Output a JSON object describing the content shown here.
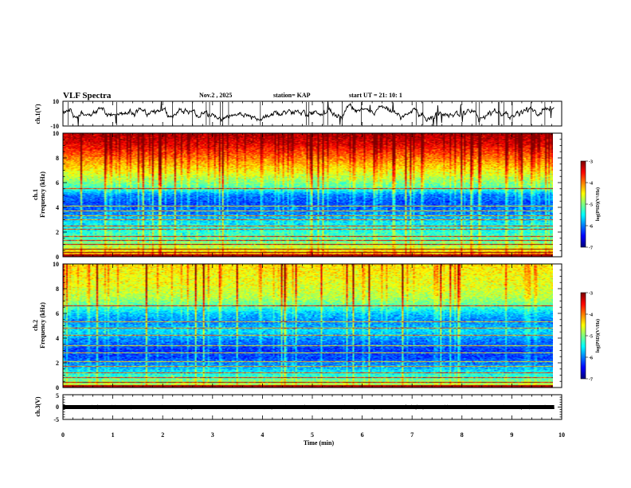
{
  "header": {
    "title": "VLF Spectra",
    "date": "Nov.2 , 2025",
    "station": "station= KAP",
    "start": "start UT = 21: 10: 1"
  },
  "chart_data": [
    {
      "type": "line",
      "name": "ch1-waveform",
      "ylabel": "ch.1(V)",
      "ylim": [
        -10,
        10
      ],
      "yticks": [
        "10",
        "-10"
      ],
      "xlim": [
        0,
        10
      ],
      "color": "#000000"
    },
    {
      "type": "heatmap",
      "name": "ch1-spectrogram",
      "ylabel_line1": "ch.1",
      "ylabel_line2": "Frequency (kHz)",
      "ylim": [
        0,
        10
      ],
      "yticks": [
        "0",
        "2",
        "4",
        "6",
        "8",
        "10"
      ],
      "xlim": [
        0,
        9.85
      ],
      "colorbar": {
        "label": "log(PSD)(V²/Hz)",
        "ticks": [
          "-3",
          "-4",
          "-5",
          "-6",
          "-7"
        ],
        "range": [
          -7,
          -3
        ]
      },
      "profile": [
        {
          "f": 0,
          "v": -4.0
        },
        {
          "f": 0.3,
          "v": -4.3
        },
        {
          "f": 0.7,
          "v": -4.7
        },
        {
          "f": 1.2,
          "v": -5.1
        },
        {
          "f": 2.0,
          "v": -5.4
        },
        {
          "f": 2.8,
          "v": -5.6
        },
        {
          "f": 3.5,
          "v": -6.0
        },
        {
          "f": 4.3,
          "v": -6.2
        },
        {
          "f": 5.0,
          "v": -6.0
        },
        {
          "f": 5.5,
          "v": -5.3
        },
        {
          "f": 6.2,
          "v": -4.9
        },
        {
          "f": 7.2,
          "v": -4.4
        },
        {
          "f": 8.2,
          "v": -3.9
        },
        {
          "f": 9.2,
          "v": -3.4
        },
        {
          "f": 10.0,
          "v": -3.2
        }
      ],
      "lines_khz": [
        0.3,
        0.6,
        1.0,
        1.3,
        1.6,
        2.2,
        2.5,
        3.0,
        3.3,
        3.7,
        4.1,
        5.5
      ]
    },
    {
      "type": "heatmap",
      "name": "ch2-spectrogram",
      "ylabel_line1": "ch.2",
      "ylabel_line2": "Frequency (kHz)",
      "ylim": [
        0,
        10
      ],
      "yticks": [
        "0",
        "2",
        "4",
        "6",
        "8",
        "10"
      ],
      "xlim": [
        0,
        9.85
      ],
      "colorbar": {
        "label": "log(PSD)(V²/Hz)",
        "ticks": [
          "-3",
          "-4",
          "-5",
          "-6",
          "-7"
        ],
        "range": [
          -7,
          -3
        ]
      },
      "profile": [
        {
          "f": 0,
          "v": -4.6
        },
        {
          "f": 0.5,
          "v": -5.0
        },
        {
          "f": 1.0,
          "v": -5.4
        },
        {
          "f": 1.6,
          "v": -5.8
        },
        {
          "f": 2.3,
          "v": -6.2
        },
        {
          "f": 3.0,
          "v": -6.3
        },
        {
          "f": 3.8,
          "v": -6.0
        },
        {
          "f": 4.6,
          "v": -5.6
        },
        {
          "f": 5.3,
          "v": -6.0
        },
        {
          "f": 6.0,
          "v": -5.7
        },
        {
          "f": 6.6,
          "v": -5.2
        },
        {
          "f": 7.3,
          "v": -4.8
        },
        {
          "f": 8.3,
          "v": -4.6
        },
        {
          "f": 9.2,
          "v": -4.5
        },
        {
          "f": 10.0,
          "v": -4.4
        }
      ],
      "lines_khz": [
        0.4,
        0.8,
        1.2,
        1.7,
        2.1,
        2.8,
        3.4,
        4.2,
        4.8,
        5.3,
        6.6
      ]
    },
    {
      "type": "line",
      "name": "ch3-waveform",
      "ylabel": "ch.3(V)",
      "ylim": [
        -5,
        5
      ],
      "yticks": [
        "5",
        "0",
        "-5"
      ],
      "xlim": [
        0,
        10
      ],
      "level": 0,
      "color": "#000000"
    }
  ],
  "xaxis": {
    "label": "Time (min)",
    "ticks": [
      "0",
      "1",
      "2",
      "3",
      "4",
      "5",
      "6",
      "7",
      "8",
      "9",
      "10"
    ],
    "range": [
      0,
      10
    ]
  }
}
